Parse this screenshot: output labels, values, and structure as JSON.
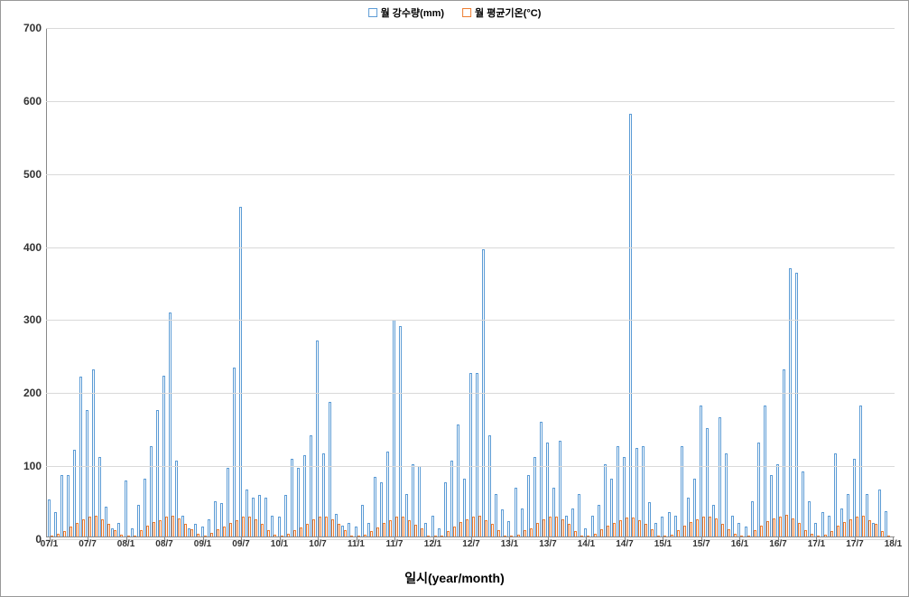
{
  "chart": {
    "type": "bar",
    "legend": {
      "series1": {
        "label": "월 강수량(mm)",
        "color": "#5b9bd5"
      },
      "series2": {
        "label": "월 평균기온(°C)",
        "color": "#ed7d31"
      }
    },
    "x_title": "일시(year/month)",
    "ylim": [
      0,
      700
    ],
    "ytick_step": 100,
    "background_color": "#ffffff",
    "grid_color": "#d9d9d9",
    "axis_color": "#888888",
    "label_fontsize": 11,
    "title_fontsize": 14,
    "x_labels": [
      "07/1",
      "07/7",
      "08/1",
      "08/7",
      "09/1",
      "09/7",
      "10/1",
      "10/7",
      "11/1",
      "11/7",
      "12/1",
      "12/7",
      "13/1",
      "13/7",
      "14/1",
      "14/7",
      "15/1",
      "15/7",
      "16/1",
      "16/7",
      "17/1",
      "17/7",
      "18/1"
    ],
    "precipitation": [
      52,
      35,
      85,
      85,
      120,
      220,
      175,
      230,
      110,
      42,
      13,
      20,
      78,
      12,
      45,
      80,
      125,
      175,
      222,
      308,
      105,
      30,
      12,
      18,
      15,
      25,
      50,
      47,
      95,
      232,
      453,
      65,
      55,
      58,
      55,
      30,
      28,
      58,
      108,
      95,
      112,
      140,
      270,
      115,
      185,
      32,
      16,
      20,
      15,
      45,
      20,
      83,
      75,
      118,
      298,
      290,
      60,
      100,
      98,
      20,
      30,
      12,
      75,
      105,
      155,
      80,
      225,
      225,
      395,
      140,
      60,
      38,
      22,
      68,
      40,
      85,
      110,
      158,
      130,
      68,
      132,
      30,
      40,
      60,
      12,
      30,
      45,
      100,
      80,
      125,
      110,
      580,
      122,
      125,
      48,
      20,
      28,
      35,
      30,
      125,
      55,
      80,
      180,
      150,
      45,
      165,
      115,
      30,
      20,
      15,
      50,
      130,
      180,
      85,
      100,
      230,
      368,
      362,
      90,
      50,
      20,
      35,
      30,
      115,
      40,
      60,
      108,
      180,
      60,
      20,
      65,
      36
    ],
    "temperature": [
      2,
      5,
      9,
      15,
      20,
      25,
      29,
      30,
      25,
      18,
      10,
      4,
      1,
      3,
      10,
      16,
      21,
      24,
      28,
      30,
      26,
      19,
      11,
      5,
      2,
      6,
      11,
      15,
      20,
      24,
      28,
      29,
      25,
      18,
      10,
      4,
      1,
      5,
      10,
      14,
      19,
      25,
      28,
      29,
      25,
      18,
      10,
      3,
      0,
      4,
      9,
      14,
      20,
      24,
      28,
      29,
      24,
      17,
      12,
      3,
      1,
      3,
      9,
      15,
      21,
      25,
      29,
      30,
      24,
      18,
      10,
      2,
      0,
      4,
      10,
      13,
      20,
      25,
      28,
      29,
      25,
      19,
      9,
      3,
      2,
      5,
      11,
      16,
      20,
      24,
      27,
      27,
      24,
      18,
      11,
      3,
      1,
      4,
      10,
      16,
      21,
      25,
      28,
      29,
      26,
      19,
      11,
      5,
      0,
      3,
      10,
      16,
      22,
      26,
      29,
      31,
      26,
      20,
      10,
      5,
      1,
      4,
      9,
      16,
      21,
      25,
      29,
      30,
      24,
      18,
      9,
      2
    ]
  }
}
